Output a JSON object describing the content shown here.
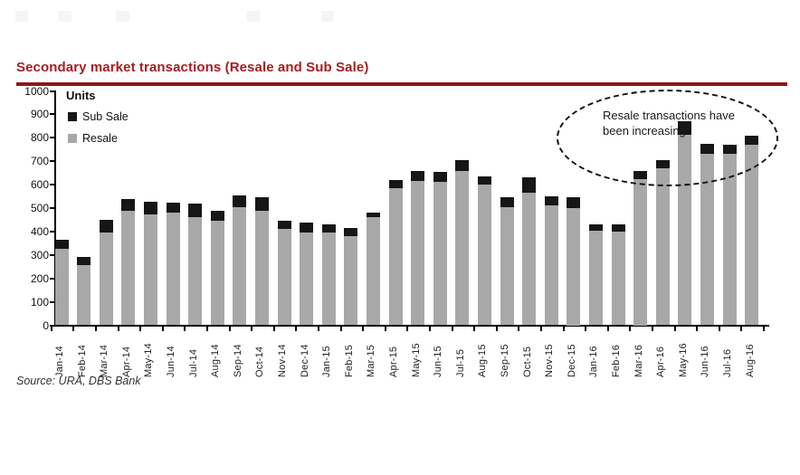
{
  "header": {
    "title": "Secondary market transactions (Resale and Sub Sale)",
    "title_color": "#A41E22",
    "rule_color": "#8C181B"
  },
  "chart_data": {
    "type": "bar",
    "stacked": true,
    "title": "Secondary market transactions (Resale and Sub Sale)",
    "units_label": "Units",
    "ylim": [
      0,
      1000
    ],
    "ytick_step": 100,
    "yticks": [
      1000,
      900,
      800,
      700,
      600,
      500,
      400,
      300,
      200,
      100,
      0
    ],
    "grid": false,
    "legend_position": "top-left-inside",
    "categories": [
      "Jan-14",
      "Feb-14",
      "Mar-14",
      "Apr-14",
      "May-14",
      "Jun-14",
      "Jul-14",
      "Aug-14",
      "Sep-14",
      "Oct-14",
      "Nov-14",
      "Dec-14",
      "Jan-15",
      "Feb-15",
      "Mar-15",
      "Apr-15",
      "May-15",
      "Jun-15",
      "Jul-15",
      "Aug-15",
      "Sep-15",
      "Oct-15",
      "Nov-15",
      "Dec-15",
      "Jan-16",
      "Feb-16",
      "Mar-16",
      "Apr-16",
      "May-16",
      "Jun-16",
      "Jul-16",
      "Aug-16"
    ],
    "series": [
      {
        "name": "Sub Sale",
        "color": "#161616",
        "values": [
          40,
          32,
          55,
          50,
          55,
          45,
          55,
          42,
          50,
          55,
          35,
          43,
          34,
          35,
          18,
          35,
          45,
          43,
          45,
          35,
          42,
          63,
          42,
          45,
          25,
          32,
          33,
          37,
          56,
          43,
          40,
          38
        ]
      },
      {
        "name": "Resale",
        "color": "#a8a8a8",
        "values": [
          325,
          258,
          395,
          490,
          473,
          480,
          463,
          445,
          505,
          490,
          410,
          396,
          396,
          380,
          462,
          585,
          615,
          612,
          660,
          600,
          505,
          567,
          510,
          500,
          405,
          400,
          625,
          668,
          814,
          733,
          730,
          772
        ]
      }
    ],
    "annotation": {
      "line1": "Resale transactions have",
      "line2": "been increasing"
    }
  },
  "source": {
    "text": "Source: URA, DBS  Bank"
  }
}
